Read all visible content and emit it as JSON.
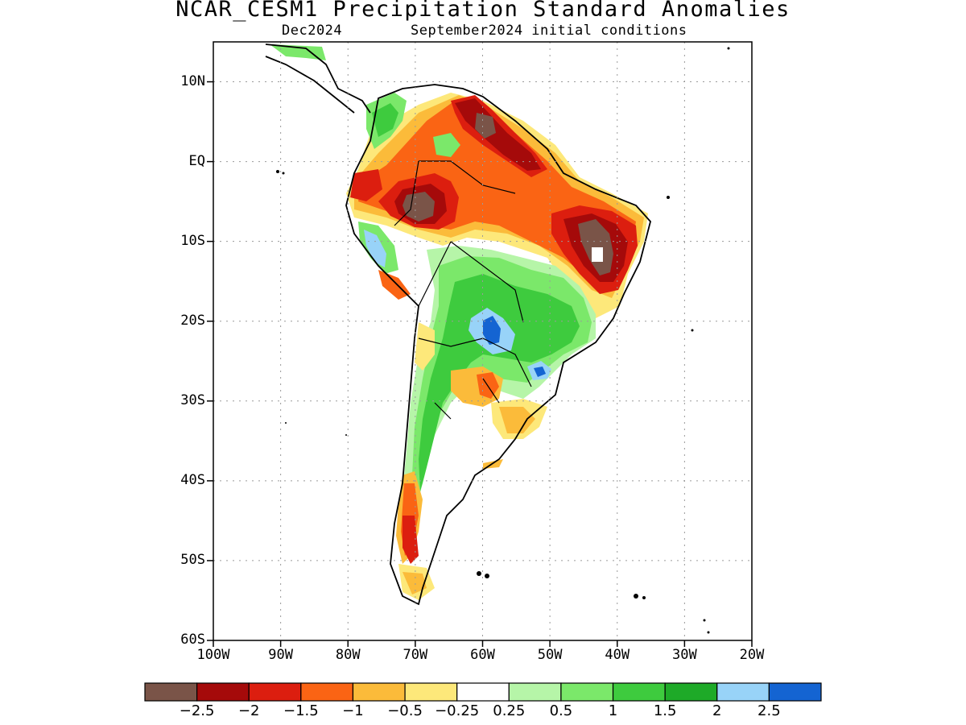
{
  "title": "NCAR_CESM1 Precipitation Standard Anomalies",
  "subtitle_left": "Dec2024",
  "subtitle_right": "September2024 initial conditions",
  "map": {
    "lat_labels": [
      "10N",
      "EQ",
      "10S",
      "20S",
      "30S",
      "40S",
      "50S",
      "60S"
    ],
    "lon_labels": [
      "100W",
      "90W",
      "80W",
      "70W",
      "60W",
      "50W",
      "40W",
      "30W",
      "20W"
    ],
    "lat_values": [
      10,
      0,
      -10,
      -20,
      -30,
      -40,
      -50,
      -60
    ],
    "lon_values": [
      -100,
      -90,
      -80,
      -70,
      -60,
      -50,
      -40,
      -30,
      -20
    ],
    "extent": {
      "lon": [
        -100,
        -20
      ],
      "lat": [
        -60,
        15
      ]
    },
    "grid": "dotted"
  },
  "colorbar": {
    "colors": [
      "#7a5448",
      "#a50a0a",
      "#dc1e0f",
      "#fa6414",
      "#fbbb3a",
      "#fde87a",
      "#ffffff",
      "#b6f5a8",
      "#7be86a",
      "#3ecb3e",
      "#1eaa28",
      "#98d3f8",
      "#1464d2"
    ],
    "labels": [
      "−2.5",
      "−2",
      "−1.5",
      "−1",
      "−0.5",
      "−0.25",
      "0.25",
      "0.5",
      "1",
      "1.5",
      "2",
      "2.5"
    ]
  }
}
